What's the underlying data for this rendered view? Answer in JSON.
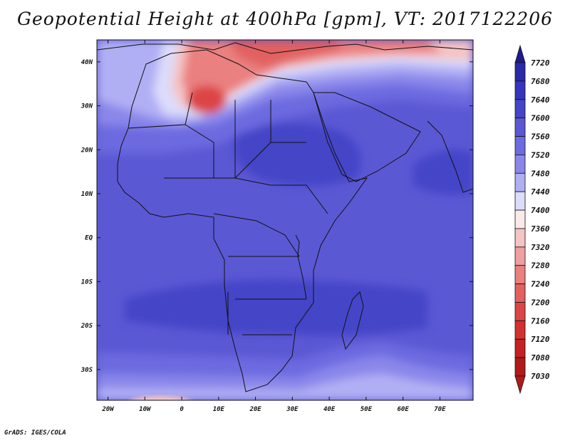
{
  "title": "Geopotential Height at 400hPa [gpm], VT: 2017122206",
  "credit": "GrADS: IGES/COLA",
  "map": {
    "lon_range": [
      -23,
      79
    ],
    "lat_range": [
      -37,
      45
    ],
    "lon_ticks": [
      {
        "lon": -20,
        "label": "20W"
      },
      {
        "lon": -10,
        "label": "10W"
      },
      {
        "lon": 0,
        "label": "0"
      },
      {
        "lon": 10,
        "label": "10E"
      },
      {
        "lon": 20,
        "label": "20E"
      },
      {
        "lon": 30,
        "label": "30E"
      },
      {
        "lon": 40,
        "label": "40E"
      },
      {
        "lon": 50,
        "label": "50E"
      },
      {
        "lon": 60,
        "label": "60E"
      },
      {
        "lon": 70,
        "label": "70E"
      }
    ],
    "lat_ticks": [
      {
        "lat": 40,
        "label": "40N"
      },
      {
        "lat": 30,
        "label": "30N"
      },
      {
        "lat": 20,
        "label": "20N"
      },
      {
        "lat": 10,
        "label": "10N"
      },
      {
        "lat": 0,
        "label": "EQ"
      },
      {
        "lat": -10,
        "label": "10S"
      },
      {
        "lat": -20,
        "label": "20S"
      },
      {
        "lat": -30,
        "label": "30S"
      }
    ]
  },
  "colorbar": {
    "levels": [
      {
        "label": "7720",
        "color": "#1f1a8f"
      },
      {
        "label": "7680",
        "color": "#2a2aa8"
      },
      {
        "label": "7640",
        "color": "#3535bd"
      },
      {
        "label": "7600",
        "color": "#4545c8"
      },
      {
        "label": "7560",
        "color": "#5b58d4"
      },
      {
        "label": "7520",
        "color": "#6d6be0"
      },
      {
        "label": "7480",
        "color": "#8a87ea"
      },
      {
        "label": "7440",
        "color": "#b1aff4"
      },
      {
        "label": "7400",
        "color": "#dcdcfb"
      },
      {
        "label": "7360",
        "color": "#fbeaea"
      },
      {
        "label": "7320",
        "color": "#f5c4c4"
      },
      {
        "label": "7280",
        "color": "#ef9f9f"
      },
      {
        "label": "7240",
        "color": "#ea8080"
      },
      {
        "label": "7200",
        "color": "#e26060"
      },
      {
        "label": "7160",
        "color": "#dc4545"
      },
      {
        "label": "7120",
        "color": "#d53030"
      },
      {
        "label": "7080",
        "color": "#c42222"
      },
      {
        "label": "7030",
        "color": "#b11a1a"
      }
    ]
  }
}
